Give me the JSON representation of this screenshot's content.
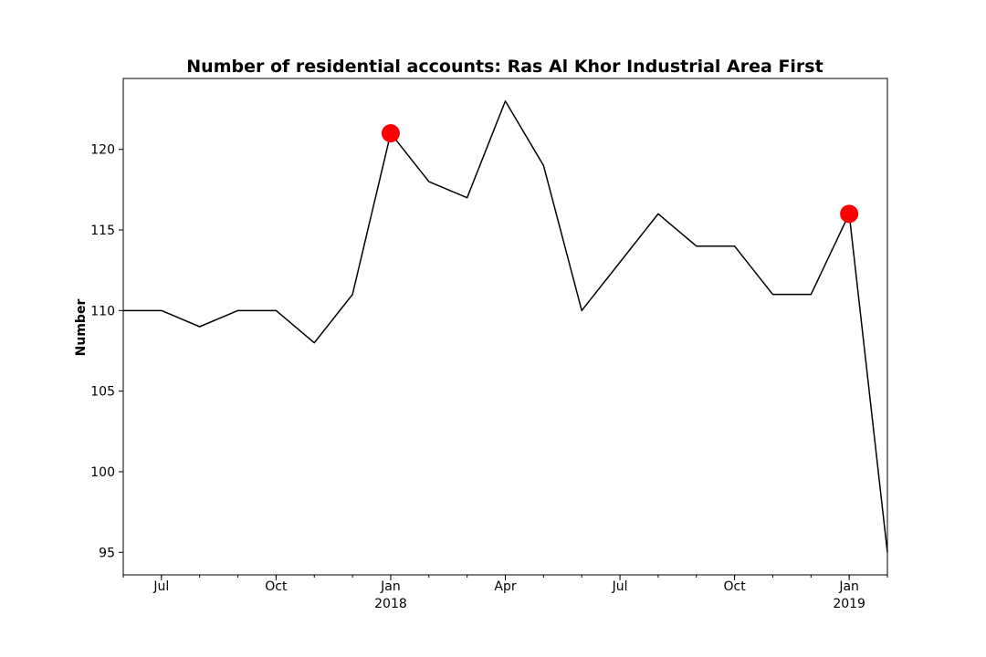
{
  "chart_data": {
    "type": "line",
    "title": "Number of residential accounts: Ras Al Khor Industrial Area First",
    "xlabel": "",
    "ylabel": "Number",
    "x": [
      "2017-06",
      "2017-07",
      "2017-08",
      "2017-09",
      "2017-10",
      "2017-11",
      "2017-12",
      "2018-01",
      "2018-02",
      "2018-03",
      "2018-04",
      "2018-05",
      "2018-06",
      "2018-07",
      "2018-08",
      "2018-09",
      "2018-10",
      "2018-11",
      "2018-12",
      "2019-01",
      "2019-02"
    ],
    "series": [
      {
        "values": [
          110,
          110,
          109,
          110,
          110,
          108,
          111,
          121,
          118,
          117,
          123,
          119,
          110,
          113,
          116,
          114,
          114,
          111,
          111,
          116,
          95
        ],
        "color": "#000000"
      }
    ],
    "highlighted_points": [
      {
        "x": "2018-01",
        "y": 121,
        "color": "#ff0000"
      },
      {
        "x": "2019-01",
        "y": 116,
        "color": "#ff0000"
      }
    ],
    "ylim": [
      93.6,
      124.4
    ],
    "xlim": [
      "2017-06",
      "2019-02"
    ],
    "y_ticks": [
      "95",
      "100",
      "105",
      "110",
      "115",
      "120"
    ],
    "x_ticks": [
      {
        "x": "2017-07",
        "label": "Jul",
        "sublabel": ""
      },
      {
        "x": "2017-10",
        "label": "Oct",
        "sublabel": ""
      },
      {
        "x": "2018-01",
        "label": "Jan",
        "sublabel": "2018"
      },
      {
        "x": "2018-04",
        "label": "Apr",
        "sublabel": ""
      },
      {
        "x": "2018-07",
        "label": "Jul",
        "sublabel": ""
      },
      {
        "x": "2018-10",
        "label": "Oct",
        "sublabel": ""
      },
      {
        "x": "2019-01",
        "label": "Jan",
        "sublabel": "2019"
      }
    ],
    "grid": false,
    "legend": "none"
  }
}
